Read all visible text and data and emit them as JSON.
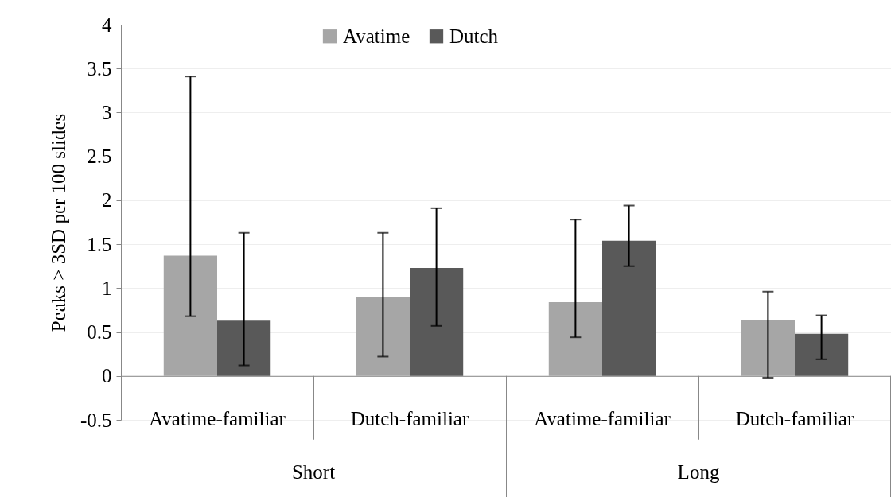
{
  "chart_data": {
    "type": "bar",
    "ylabel": "Peaks > 3SD per 100 slides",
    "categories": [
      "Avatime-familiar",
      "Dutch-familiar",
      "Avatime-familiar",
      "Dutch-familiar"
    ],
    "series": [
      {
        "name": "Avatime",
        "color": "#a6a6a6",
        "values": [
          1.37,
          0.9,
          0.84,
          0.64
        ],
        "errors": [
          [
            0.68,
            3.41
          ],
          [
            0.22,
            1.63
          ],
          [
            0.44,
            1.78
          ],
          [
            -0.02,
            0.96
          ]
        ]
      },
      {
        "name": "Dutch",
        "color": "#595959",
        "values": [
          0.63,
          1.23,
          1.54,
          0.48
        ],
        "errors": [
          [
            0.12,
            1.63
          ],
          [
            0.57,
            1.91
          ],
          [
            1.25,
            1.94
          ],
          [
            0.19,
            0.69
          ]
        ]
      }
    ],
    "annotations": [
      "Short",
      "Long"
    ],
    "ylim": [
      -0.5,
      4
    ],
    "yticks": [
      -0.5,
      0,
      0.5,
      1,
      1.5,
      2,
      2.5,
      3,
      3.5,
      4
    ],
    "grid": "y",
    "legend": "top"
  }
}
